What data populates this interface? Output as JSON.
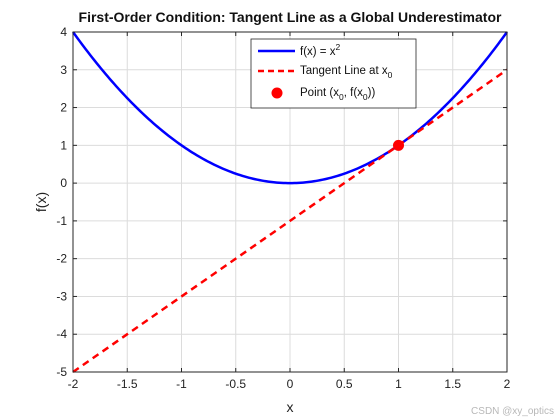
{
  "chart_data": {
    "type": "line",
    "title": "First-Order Condition: Tangent Line as a Global Underestimator",
    "xlabel": "x",
    "ylabel": "f(x)",
    "xlim": [
      -2,
      2
    ],
    "ylim": [
      -5,
      4
    ],
    "grid": true,
    "legend_position": "top-right",
    "x_ticks": [
      "-2",
      "-1.5",
      "-1",
      "-0.5",
      "0",
      "0.5",
      "1",
      "1.5",
      "2"
    ],
    "y_ticks": [
      "-5",
      "-4",
      "-3",
      "-2",
      "-1",
      "0",
      "1",
      "2",
      "3",
      "4"
    ],
    "series": [
      {
        "name": "f(x) = x²",
        "legend_base": "f(x) = x",
        "legend_sup": "2",
        "style": "solid",
        "color": "#0000ff",
        "x": [
          -2,
          -1.75,
          -1.5,
          -1.25,
          -1,
          -0.75,
          -0.5,
          -0.25,
          0,
          0.25,
          0.5,
          0.75,
          1,
          1.25,
          1.5,
          1.75,
          2
        ],
        "y": [
          4,
          3.0625,
          2.25,
          1.5625,
          1,
          0.5625,
          0.25,
          0.0625,
          0,
          0.0625,
          0.25,
          0.5625,
          1,
          1.5625,
          2.25,
          3.0625,
          4
        ]
      },
      {
        "name": "Tangent Line at x₀",
        "legend_base": "Tangent Line at x",
        "legend_sub": "0",
        "style": "dashed",
        "color": "#ff0000",
        "x": [
          -2,
          2
        ],
        "y": [
          -5,
          3
        ]
      },
      {
        "name": "Point (x₀, f(x₀))",
        "legend_parts": [
          "Point (x",
          "0",
          ", f(x",
          "0",
          "))"
        ],
        "style": "marker",
        "color": "#ff0000",
        "x": [
          1
        ],
        "y": [
          1
        ]
      }
    ]
  },
  "watermark": "CSDN @xy_optics"
}
